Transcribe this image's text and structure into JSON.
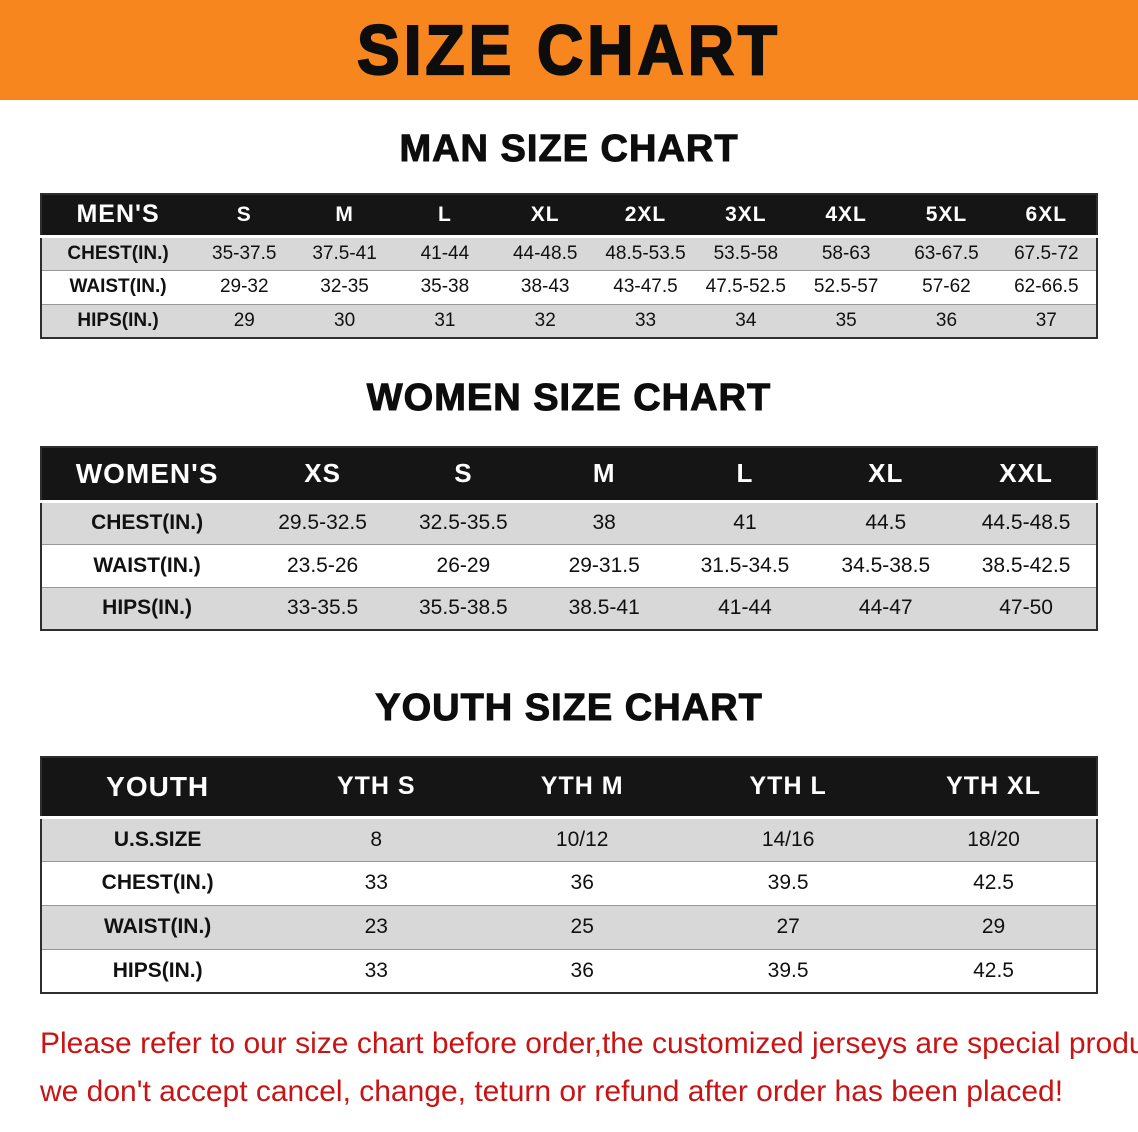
{
  "banner": {
    "title": "SIZE CHART"
  },
  "colors": {
    "banner_bg": "#F6861D",
    "header_bg": "#151515",
    "row_shade": "#D8D8D8",
    "note_red": "#C81414"
  },
  "sections": [
    {
      "id": "men",
      "heading": "MAN SIZE CHART",
      "header": [
        "MEN'S",
        "S",
        "M",
        "L",
        "XL",
        "2XL",
        "3XL",
        "4XL",
        "5XL",
        "6XL"
      ],
      "rows": [
        {
          "label": "CHEST(IN.)",
          "values": [
            "35-37.5",
            "37.5-41",
            "41-44",
            "44-48.5",
            "48.5-53.5",
            "53.5-58",
            "58-63",
            "63-67.5",
            "67.5-72"
          ]
        },
        {
          "label": "WAIST(IN.)",
          "values": [
            "29-32",
            "32-35",
            "35-38",
            "38-43",
            "43-47.5",
            "47.5-52.5",
            "52.5-57",
            "57-62",
            "62-66.5"
          ]
        },
        {
          "label": "HIPS(IN.)",
          "values": [
            "29",
            "30",
            "31",
            "32",
            "33",
            "34",
            "35",
            "36",
            "37"
          ]
        }
      ]
    },
    {
      "id": "women",
      "heading": "WOMEN SIZE CHART",
      "header": [
        "WOMEN'S",
        "XS",
        "S",
        "M",
        "L",
        "XL",
        "XXL"
      ],
      "rows": [
        {
          "label": "CHEST(IN.)",
          "values": [
            "29.5-32.5",
            "32.5-35.5",
            "38",
            "41",
            "44.5",
            "44.5-48.5"
          ]
        },
        {
          "label": "WAIST(IN.)",
          "values": [
            "23.5-26",
            "26-29",
            "29-31.5",
            "31.5-34.5",
            "34.5-38.5",
            "38.5-42.5"
          ]
        },
        {
          "label": "HIPS(IN.)",
          "values": [
            "33-35.5",
            "35.5-38.5",
            "38.5-41",
            "41-44",
            "44-47",
            "47-50"
          ]
        }
      ]
    },
    {
      "id": "youth",
      "heading": "YOUTH SIZE CHART",
      "header": [
        "YOUTH",
        "YTH S",
        "YTH M",
        "YTH L",
        "YTH XL"
      ],
      "rows": [
        {
          "label": "U.S.SIZE",
          "values": [
            "8",
            "10/12",
            "14/16",
            "18/20"
          ]
        },
        {
          "label": "CHEST(IN.)",
          "values": [
            "33",
            "36",
            "39.5",
            "42.5"
          ]
        },
        {
          "label": "WAIST(IN.)",
          "values": [
            "23",
            "25",
            "27",
            "29"
          ]
        },
        {
          "label": "HIPS(IN.)",
          "values": [
            "33",
            "36",
            "39.5",
            "42.5"
          ]
        }
      ]
    }
  ],
  "note": {
    "line1": "Please refer to our size chart before order,the customized jerseys are special products,",
    "line2": "we don't accept cancel, change, teturn or refund after order has been placed!"
  }
}
